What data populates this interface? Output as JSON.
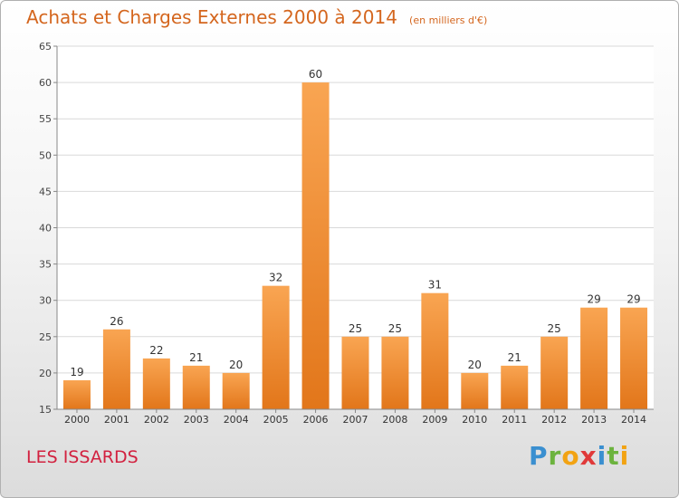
{
  "header": {
    "title": "Achats et Charges Externes 2000 à 2014",
    "unit": "(en milliers d'€)"
  },
  "footer": {
    "commune": "LES ISSARDS",
    "logo_letters": [
      {
        "ch": "P",
        "color": "#3a8fd0"
      },
      {
        "ch": "r",
        "color": "#6cb33e"
      },
      {
        "ch": "o",
        "color": "#f2a313"
      },
      {
        "ch": "x",
        "color": "#e03a3a"
      },
      {
        "ch": "i",
        "color": "#3a8fd0"
      },
      {
        "ch": "t",
        "color": "#6cb33e"
      },
      {
        "ch": "i",
        "color": "#f2a313"
      }
    ]
  },
  "chart_data": {
    "type": "bar",
    "title": "Achats et Charges Externes 2000 à 2014",
    "subtitle": "(en milliers d'€)",
    "categories": [
      "2000",
      "2001",
      "2002",
      "2003",
      "2004",
      "2005",
      "2006",
      "2007",
      "2008",
      "2009",
      "2010",
      "2011",
      "2012",
      "2013",
      "2014"
    ],
    "values": [
      19,
      26,
      22,
      21,
      20,
      32,
      60,
      25,
      25,
      31,
      20,
      21,
      25,
      29,
      29
    ],
    "ylim": [
      15,
      65
    ],
    "yticks": [
      15,
      20,
      25,
      30,
      35,
      40,
      45,
      50,
      55,
      60,
      65
    ],
    "grid": true,
    "bar_color": "#f08a2c"
  }
}
